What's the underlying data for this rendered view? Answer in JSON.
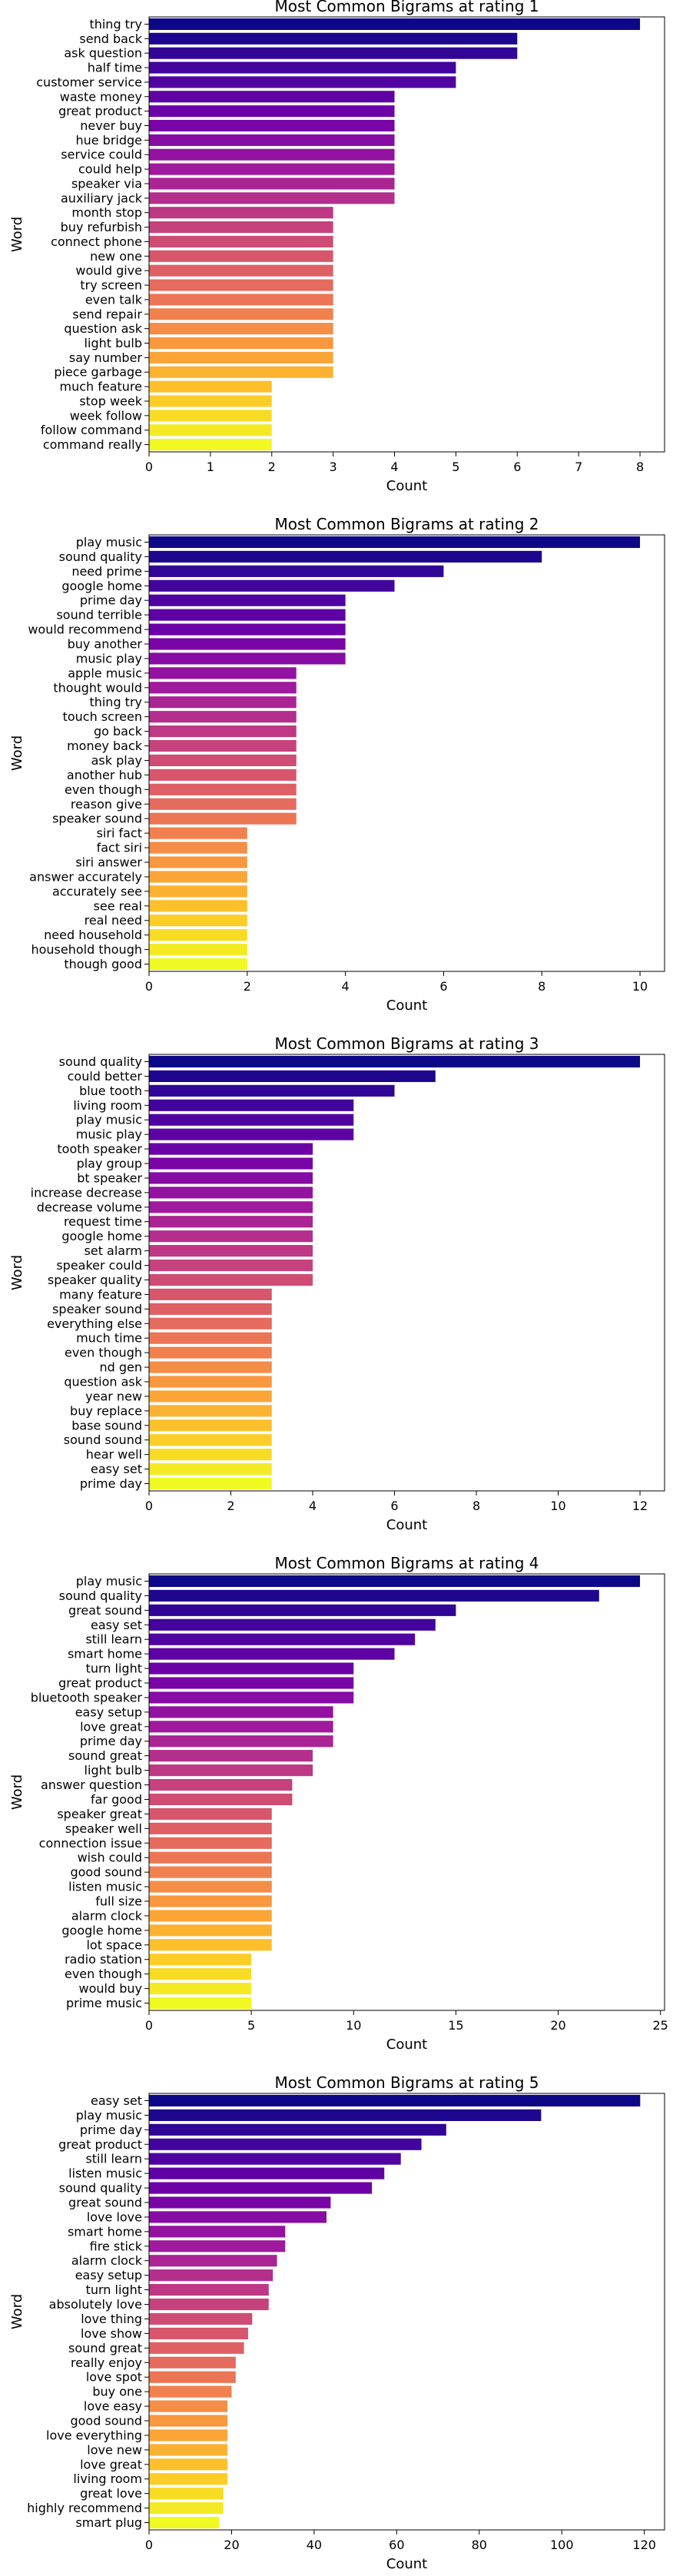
{
  "chart_data": [
    {
      "type": "bar",
      "orientation": "horizontal",
      "title": "Most Common Bigrams at rating 1",
      "xlabel": "Count",
      "ylabel": "Word",
      "xlim": [
        0,
        8.4
      ],
      "xticks": [
        0,
        1,
        2,
        3,
        4,
        5,
        6,
        7,
        8
      ],
      "grid": false,
      "palette": "plasma",
      "categories": [
        "thing try",
        "send back",
        "ask question",
        "half time",
        "customer service",
        "waste money",
        "great product",
        "never buy",
        "hue bridge",
        "service could",
        "could help",
        "speaker via",
        "auxiliary jack",
        "month stop",
        "buy refurbish",
        "connect phone",
        "new one",
        "would give",
        "try screen",
        "even talk",
        "send repair",
        "question ask",
        "light bulb",
        "say number",
        "piece garbage",
        "much feature",
        "stop week",
        "week follow",
        "follow command",
        "command really"
      ],
      "values": [
        8,
        6,
        6,
        5,
        5,
        4,
        4,
        4,
        4,
        4,
        4,
        4,
        4,
        3,
        3,
        3,
        3,
        3,
        3,
        3,
        3,
        3,
        3,
        3,
        3,
        2,
        2,
        2,
        2,
        2
      ]
    },
    {
      "type": "bar",
      "orientation": "horizontal",
      "title": "Most Common Bigrams at rating 2",
      "xlabel": "Count",
      "ylabel": "Word",
      "xlim": [
        0,
        10.5
      ],
      "xticks": [
        0,
        2,
        4,
        6,
        8,
        10
      ],
      "grid": false,
      "palette": "plasma",
      "categories": [
        "play music",
        "sound quality",
        "need prime",
        "google home",
        "prime day",
        "sound terrible",
        "would recommend",
        "buy another",
        "music play",
        "apple music",
        "thought would",
        "thing try",
        "touch screen",
        "go back",
        "money back",
        "ask play",
        "another hub",
        "even though",
        "reason give",
        "speaker sound",
        "siri fact",
        "fact siri",
        "siri answer",
        "answer accurately",
        "accurately see",
        "see real",
        "real need",
        "need household",
        "household though",
        "though good"
      ],
      "values": [
        10,
        8,
        6,
        5,
        4,
        4,
        4,
        4,
        4,
        3,
        3,
        3,
        3,
        3,
        3,
        3,
        3,
        3,
        3,
        3,
        2,
        2,
        2,
        2,
        2,
        2,
        2,
        2,
        2,
        2
      ]
    },
    {
      "type": "bar",
      "orientation": "horizontal",
      "title": "Most Common Bigrams at rating 3",
      "xlabel": "Count",
      "ylabel": "Word",
      "xlim": [
        0,
        12.6
      ],
      "xticks": [
        0,
        2,
        4,
        6,
        8,
        10,
        12
      ],
      "grid": false,
      "palette": "plasma",
      "categories": [
        "sound quality",
        "could better",
        "blue tooth",
        "living room",
        "play music",
        "music play",
        "tooth speaker",
        "play group",
        "bt speaker",
        "increase decrease",
        "decrease volume",
        "request time",
        "google home",
        "set alarm",
        "speaker could",
        "speaker quality",
        "many feature",
        "speaker sound",
        "everything else",
        "much time",
        "even though",
        "nd gen",
        "question ask",
        "year new",
        "buy replace",
        "base sound",
        "sound sound",
        "hear well",
        "easy set",
        "prime day"
      ],
      "values": [
        12,
        7,
        6,
        5,
        5,
        5,
        4,
        4,
        4,
        4,
        4,
        4,
        4,
        4,
        4,
        4,
        3,
        3,
        3,
        3,
        3,
        3,
        3,
        3,
        3,
        3,
        3,
        3,
        3,
        3
      ]
    },
    {
      "type": "bar",
      "orientation": "horizontal",
      "title": "Most Common Bigrams at rating 4",
      "xlabel": "Count",
      "ylabel": "Word",
      "xlim": [
        0,
        25.2
      ],
      "xticks": [
        0,
        5,
        10,
        15,
        20,
        25
      ],
      "grid": false,
      "palette": "plasma",
      "categories": [
        "play music",
        "sound quality",
        "great sound",
        "easy set",
        "still learn",
        "smart home",
        "turn light",
        "great product",
        "bluetooth speaker",
        "easy setup",
        "love great",
        "prime day",
        "sound great",
        "light bulb",
        "answer question",
        "far good",
        "speaker great",
        "speaker well",
        "connection issue",
        "wish could",
        "good sound",
        "listen music",
        "full size",
        "alarm clock",
        "google home",
        "lot space",
        "radio station",
        "even though",
        "would buy",
        "prime music"
      ],
      "values": [
        24,
        22,
        15,
        14,
        13,
        12,
        10,
        10,
        10,
        9,
        9,
        9,
        8,
        8,
        7,
        7,
        6,
        6,
        6,
        6,
        6,
        6,
        6,
        6,
        6,
        6,
        5,
        5,
        5,
        5
      ]
    },
    {
      "type": "bar",
      "orientation": "horizontal",
      "title": "Most Common Bigrams at rating 5",
      "xlabel": "Count",
      "ylabel": "Word",
      "xlim": [
        0,
        124.9
      ],
      "xticks": [
        0,
        20,
        40,
        60,
        80,
        100,
        120
      ],
      "grid": false,
      "palette": "plasma",
      "categories": [
        "easy set",
        "play music",
        "prime day",
        "great product",
        "still learn",
        "listen music",
        "sound quality",
        "great sound",
        "love love",
        "smart home",
        "fire stick",
        "alarm clock",
        "easy setup",
        "turn light",
        "absolutely love",
        "love thing",
        "love show",
        "sound great",
        "really enjoy",
        "love spot",
        "buy one",
        "love easy",
        "good sound",
        "love everything",
        "love new",
        "love great",
        "living room",
        "great love",
        "highly recommend",
        "smart plug"
      ],
      "values": [
        119,
        95,
        72,
        66,
        61,
        57,
        54,
        44,
        43,
        33,
        33,
        31,
        30,
        29,
        29,
        25,
        24,
        23,
        21,
        21,
        20,
        19,
        19,
        19,
        19,
        19,
        19,
        18,
        18,
        17
      ]
    }
  ]
}
